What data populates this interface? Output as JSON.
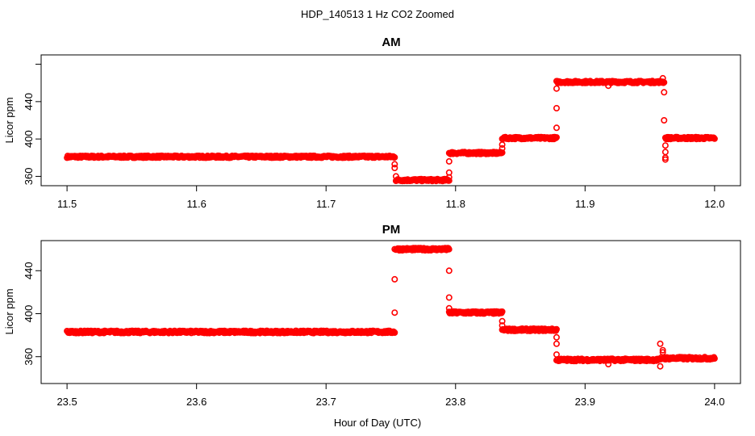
{
  "chart_data": {
    "type": "scatter",
    "title": "HDP_140513  1 Hz CO2 Zoomed",
    "xlabel": "Hour of Day (UTC)",
    "color": "#ff0000",
    "panels": [
      {
        "title": "AM",
        "ylabel": "Licor ppm",
        "xlim": [
          11.48,
          12.02
        ],
        "ylim": [
          350,
          490
        ],
        "xticks": [
          11.5,
          11.6,
          11.7,
          11.8,
          11.9,
          12.0
        ],
        "xtick_labels": [
          "11.5",
          "11.6",
          "11.7",
          "11.8",
          "11.9",
          "12.0"
        ],
        "yticks": [
          360,
          400,
          440,
          480
        ],
        "ytick_labels": [
          "360",
          "400",
          "440",
          ""
        ],
        "segments": [
          {
            "x0": 11.5,
            "x1": 11.753,
            "y": 381
          },
          {
            "x0": 11.754,
            "x1": 11.795,
            "y": 356
          },
          {
            "x0": 11.795,
            "x1": 11.836,
            "y": 385
          },
          {
            "x0": 11.836,
            "x1": 11.878,
            "y": 401
          },
          {
            "x0": 11.878,
            "x1": 11.961,
            "y": 461
          },
          {
            "x0": 11.962,
            "x1": 12.0,
            "y": 401
          }
        ],
        "outliers": [
          [
            11.753,
            373
          ],
          [
            11.753,
            369
          ],
          [
            11.754,
            360
          ],
          [
            11.795,
            364
          ],
          [
            11.795,
            376
          ],
          [
            11.795,
            359
          ],
          [
            11.836,
            394
          ],
          [
            11.836,
            390
          ],
          [
            11.878,
            412
          ],
          [
            11.878,
            433
          ],
          [
            11.878,
            454
          ],
          [
            11.918,
            457
          ],
          [
            11.96,
            465
          ],
          [
            11.961,
            450
          ],
          [
            11.961,
            420
          ],
          [
            11.962,
            393
          ],
          [
            11.962,
            386
          ],
          [
            11.962,
            380
          ],
          [
            11.962,
            378
          ]
        ]
      },
      {
        "title": "PM",
        "ylabel": "Licor ppm",
        "xlim": [
          23.48,
          24.02
        ],
        "ylim": [
          335,
          468
        ],
        "xticks": [
          23.5,
          23.6,
          23.7,
          23.8,
          23.9,
          24.0
        ],
        "xtick_labels": [
          "23.5",
          "23.6",
          "23.7",
          "23.8",
          "23.9",
          "24.0"
        ],
        "yticks": [
          360,
          400,
          440
        ],
        "ytick_labels": [
          "360",
          "400",
          "440"
        ],
        "segments": [
          {
            "x0": 23.5,
            "x1": 23.753,
            "y": 383
          },
          {
            "x0": 23.754,
            "x1": 23.795,
            "y": 460
          },
          {
            "x0": 23.795,
            "x1": 23.836,
            "y": 401
          },
          {
            "x0": 23.836,
            "x1": 23.878,
            "y": 385
          },
          {
            "x0": 23.878,
            "x1": 23.958,
            "y": 357
          },
          {
            "x0": 23.959,
            "x1": 24.0,
            "y": 358.5
          }
        ],
        "outliers": [
          [
            23.753,
            401
          ],
          [
            23.753,
            432
          ],
          [
            23.753,
            460
          ],
          [
            23.795,
            440
          ],
          [
            23.795,
            415
          ],
          [
            23.795,
            405
          ],
          [
            23.836,
            393
          ],
          [
            23.836,
            389
          ],
          [
            23.878,
            378
          ],
          [
            23.878,
            372
          ],
          [
            23.878,
            362
          ],
          [
            23.918,
            353
          ],
          [
            23.958,
            372
          ],
          [
            23.958,
            351
          ],
          [
            23.96,
            364
          ],
          [
            23.96,
            366
          ]
        ]
      }
    ]
  }
}
